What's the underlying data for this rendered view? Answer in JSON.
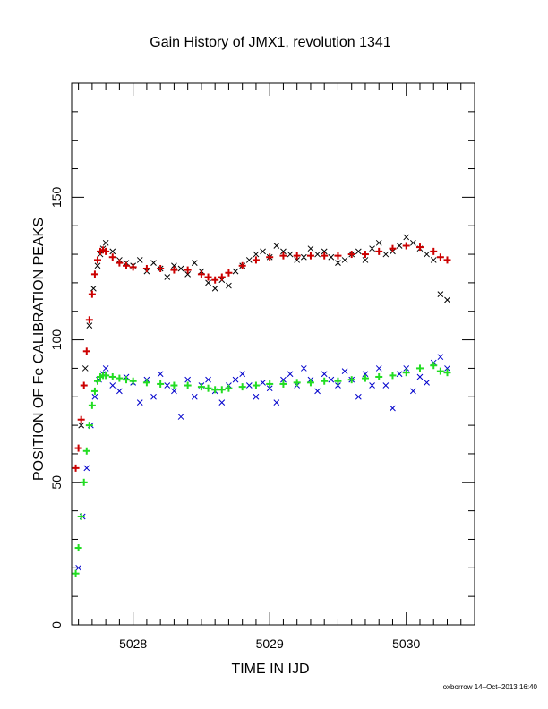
{
  "chart_data": {
    "type": "scatter",
    "title": "Gain History of JMX1, revolution 1341",
    "xlabel": "TIME IN IJD",
    "ylabel": "POSITION OF Fe CALIBRATION PEAKS",
    "xlim": [
      5027.55,
      5030.5
    ],
    "ylim": [
      0,
      190
    ],
    "xticks": [
      5028,
      5029,
      5030
    ],
    "xtick_labels": [
      "5028",
      "5029",
      "5030"
    ],
    "yticks": [
      0,
      50,
      100,
      150
    ],
    "ytick_labels": [
      "0",
      "50",
      "100",
      "150"
    ],
    "grid": false,
    "series": [
      {
        "marker": "x",
        "color": "#000000",
        "x": [
          5027.62,
          5027.65,
          5027.68,
          5027.71,
          5027.74,
          5027.76,
          5027.78,
          5027.8,
          5027.85,
          5027.9,
          5027.95,
          5028.0,
          5028.05,
          5028.1,
          5028.15,
          5028.2,
          5028.25,
          5028.3,
          5028.35,
          5028.4,
          5028.45,
          5028.5,
          5028.55,
          5028.6,
          5028.65,
          5028.7,
          5028.75,
          5028.8,
          5028.85,
          5028.9,
          5028.95,
          5029.0,
          5029.05,
          5029.1,
          5029.15,
          5029.2,
          5029.25,
          5029.3,
          5029.35,
          5029.4,
          5029.45,
          5029.5,
          5029.55,
          5029.6,
          5029.65,
          5029.7,
          5029.75,
          5029.8,
          5029.85,
          5029.9,
          5029.95,
          5030.0,
          5030.05,
          5030.1,
          5030.15,
          5030.2,
          5030.25,
          5030.3
        ],
        "y": [
          70,
          90,
          105,
          118,
          126,
          130,
          132,
          134,
          131,
          128,
          127,
          126,
          128,
          124,
          127,
          125,
          122,
          126,
          125,
          123,
          127,
          124,
          120,
          118,
          121,
          119,
          124,
          126,
          128,
          130,
          131,
          129,
          133,
          131,
          130,
          128,
          129,
          132,
          130,
          131,
          129,
          127,
          128,
          130,
          131,
          128,
          132,
          134,
          130,
          131,
          133,
          136,
          134,
          132,
          130,
          128,
          116,
          114
        ]
      },
      {
        "marker": "+",
        "color": "#cc0000",
        "x": [
          5027.58,
          5027.6,
          5027.62,
          5027.64,
          5027.66,
          5027.68,
          5027.7,
          5027.72,
          5027.74,
          5027.76,
          5027.78,
          5027.8,
          5027.85,
          5027.9,
          5027.95,
          5028.0,
          5028.1,
          5028.2,
          5028.3,
          5028.4,
          5028.5,
          5028.55,
          5028.6,
          5028.65,
          5028.7,
          5028.8,
          5028.9,
          5029.0,
          5029.1,
          5029.2,
          5029.3,
          5029.4,
          5029.5,
          5029.6,
          5029.7,
          5029.8,
          5029.9,
          5030.0,
          5030.1,
          5030.2,
          5030.25,
          5030.3
        ],
        "y": [
          55,
          62,
          72,
          84,
          96,
          107,
          116,
          123,
          128,
          131,
          131.5,
          131,
          129,
          127,
          126,
          125.5,
          125,
          125,
          124.5,
          124.5,
          123,
          122,
          121,
          122,
          123.5,
          126,
          128,
          129,
          129.5,
          129.5,
          129.5,
          129.5,
          129.5,
          130,
          130,
          131,
          132,
          133,
          132.5,
          131,
          129,
          128
        ]
      },
      {
        "marker": "x",
        "color": "#0000cc",
        "x": [
          5027.6,
          5027.63,
          5027.66,
          5027.69,
          5027.72,
          5027.75,
          5027.78,
          5027.8,
          5027.85,
          5027.9,
          5027.95,
          5028.0,
          5028.05,
          5028.1,
          5028.15,
          5028.2,
          5028.25,
          5028.3,
          5028.35,
          5028.4,
          5028.45,
          5028.5,
          5028.55,
          5028.6,
          5028.65,
          5028.7,
          5028.75,
          5028.8,
          5028.85,
          5028.9,
          5028.95,
          5029.0,
          5029.05,
          5029.1,
          5029.15,
          5029.2,
          5029.25,
          5029.3,
          5029.35,
          5029.4,
          5029.45,
          5029.5,
          5029.55,
          5029.6,
          5029.65,
          5029.7,
          5029.75,
          5029.8,
          5029.85,
          5029.9,
          5029.95,
          5030.0,
          5030.05,
          5030.1,
          5030.15,
          5030.2,
          5030.25,
          5030.3
        ],
        "y": [
          20,
          38,
          55,
          70,
          80,
          86,
          88,
          90,
          84,
          82,
          87,
          85,
          78,
          86,
          80,
          88,
          84,
          82,
          73,
          86,
          80,
          84,
          86,
          82,
          78,
          84,
          86,
          88,
          84,
          80,
          85,
          83,
          78,
          86,
          88,
          84,
          90,
          86,
          82,
          88,
          86,
          84,
          89,
          86,
          80,
          88,
          84,
          90,
          84,
          76,
          88,
          90,
          82,
          87,
          85,
          92,
          94,
          90
        ]
      },
      {
        "marker": "+",
        "color": "#22dd22",
        "x": [
          5027.58,
          5027.6,
          5027.62,
          5027.64,
          5027.66,
          5027.68,
          5027.7,
          5027.72,
          5027.74,
          5027.76,
          5027.78,
          5027.8,
          5027.85,
          5027.9,
          5027.95,
          5028.0,
          5028.1,
          5028.2,
          5028.3,
          5028.4,
          5028.5,
          5028.55,
          5028.6,
          5028.65,
          5028.7,
          5028.8,
          5028.9,
          5029.0,
          5029.1,
          5029.2,
          5029.3,
          5029.4,
          5029.5,
          5029.6,
          5029.7,
          5029.8,
          5029.9,
          5030.0,
          5030.1,
          5030.2,
          5030.25,
          5030.3
        ],
        "y": [
          18,
          27,
          38,
          50,
          61,
          70,
          77,
          82,
          85.5,
          87,
          87.5,
          87.5,
          87,
          86.5,
          86,
          85.5,
          85,
          84.5,
          84,
          84,
          83.5,
          83,
          82.5,
          82.5,
          83,
          83.5,
          84,
          84.5,
          84.5,
          85,
          85,
          85.5,
          85.5,
          86,
          86.5,
          87,
          87.5,
          88.5,
          90,
          91,
          89,
          88.5
        ]
      }
    ],
    "footer_text": "oxborrow 14–Oct–2013 16:40"
  }
}
